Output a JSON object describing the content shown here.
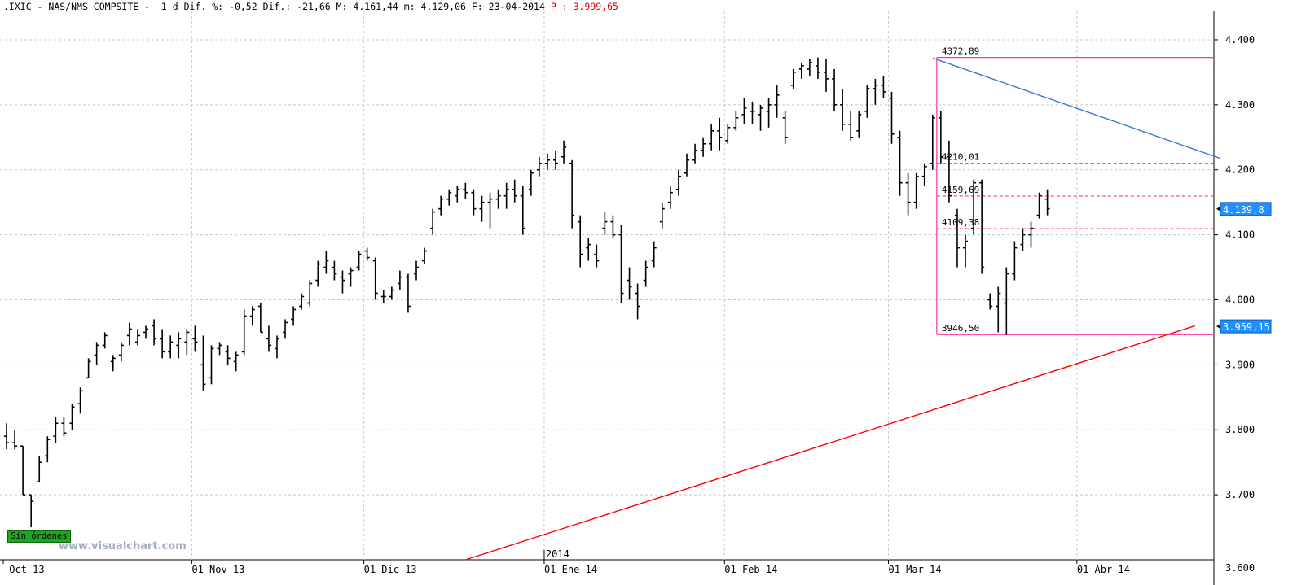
{
  "header": {
    "symbol": ".IXIC",
    "name": "NAS/NMS COMPSITE",
    "interval": "1 d",
    "dif_pct_label": "Dif. %:",
    "dif_pct": "-0,52",
    "dif_label": "Dif.:",
    "dif": "-21,66",
    "max_label": "M:",
    "max": "4.161,44",
    "min_label": "m:",
    "min": "4.129,06",
    "date_label": "F:",
    "date": "23-04-2014",
    "price_label": "P :",
    "price": "3.999,65"
  },
  "badges": {
    "sin_ordenes": "Sin órdenes",
    "watermark": "www.visualchart.com"
  },
  "colors": {
    "bars": "#000000",
    "trend_down": "#3a7bd5",
    "trend_up": "#ff0000",
    "fib": "#ff3399",
    "price_box": "#1e90ff"
  },
  "chart_data": {
    "type": "bar",
    "ylim": [
      3600,
      4430
    ],
    "yticks": [
      3700,
      3800,
      3900,
      4000,
      4100,
      4200,
      4300,
      4400
    ],
    "ytick_labels": [
      "3.700",
      "3.800",
      "3.900",
      "4.000",
      "4.100",
      "4.200",
      "4.300",
      "4.400"
    ],
    "bottom_partial_label": "3.600",
    "xtick_labels": [
      {
        "i": 0,
        "label": "-Oct-13"
      },
      {
        "i": 23,
        "label": "01-Nov-13"
      },
      {
        "i": 44,
        "label": "01-Dic-13"
      },
      {
        "i": 66,
        "label": "01-Ene-14"
      },
      {
        "i": 88,
        "label": "01-Feb-14"
      },
      {
        "i": 108,
        "label": "01-Mar-14"
      },
      {
        "i": 131,
        "label": "01-Abr-14"
      }
    ],
    "year_marker": {
      "i": 66,
      "label": "2014"
    },
    "fib_levels": [
      {
        "value": 4372.89,
        "label": "4372,89",
        "style": "solid"
      },
      {
        "value": 4210.01,
        "label": "4210,01",
        "style": "dashed"
      },
      {
        "value": 4159.69,
        "label": "4159,69",
        "style": "dashed"
      },
      {
        "value": 4109.38,
        "label": "4109,38",
        "style": "dashed"
      },
      {
        "value": 3946.5,
        "label": "3946,50",
        "style": "solid"
      }
    ],
    "fib_start_i": 114,
    "trendlines": [
      {
        "name": "resistance",
        "from": {
          "i": 113,
          "y": 4372
        },
        "to": {
          "i": 148,
          "y": 4218
        }
      },
      {
        "name": "support",
        "from": {
          "i": 56,
          "y": 3600
        },
        "to": {
          "i": 145,
          "y": 3960
        }
      }
    ],
    "price_boxes": [
      {
        "value": 4139.8,
        "label": "4.139,8"
      },
      {
        "value": 3959.15,
        "label": "3.959,15"
      }
    ],
    "ohlc": [
      [
        3790,
        3810,
        3770,
        3780
      ],
      [
        3780,
        3800,
        3770,
        3775
      ],
      [
        3775,
        3775,
        3700,
        3700
      ],
      [
        3700,
        3700,
        3650,
        3690
      ],
      [
        3720,
        3760,
        3720,
        3750
      ],
      [
        3760,
        3790,
        3750,
        3785
      ],
      [
        3790,
        3820,
        3780,
        3810
      ],
      [
        3810,
        3820,
        3790,
        3795
      ],
      [
        3810,
        3840,
        3800,
        3835
      ],
      [
        3840,
        3865,
        3825,
        3860
      ],
      [
        3880,
        3910,
        3880,
        3905
      ],
      [
        3915,
        3935,
        3900,
        3930
      ],
      [
        3930,
        3950,
        3925,
        3945
      ],
      [
        3905,
        3915,
        3890,
        3910
      ],
      [
        3915,
        3935,
        3905,
        3930
      ],
      [
        3945,
        3965,
        3930,
        3955
      ],
      [
        3935,
        3955,
        3930,
        3945
      ],
      [
        3950,
        3960,
        3940,
        3955
      ],
      [
        3960,
        3970,
        3930,
        3940
      ],
      [
        3940,
        3955,
        3910,
        3920
      ],
      [
        3920,
        3945,
        3910,
        3935
      ],
      [
        3930,
        3950,
        3910,
        3940
      ],
      [
        3935,
        3955,
        3915,
        3950
      ],
      [
        3940,
        3960,
        3920,
        3935
      ],
      [
        3900,
        3945,
        3860,
        3870
      ],
      [
        3880,
        3930,
        3870,
        3925
      ],
      [
        3925,
        3935,
        3915,
        3930
      ],
      [
        3920,
        3930,
        3900,
        3910
      ],
      [
        3905,
        3920,
        3890,
        3915
      ],
      [
        3920,
        3985,
        3915,
        3975
      ],
      [
        3975,
        3990,
        3960,
        3985
      ],
      [
        3990,
        3995,
        3950,
        3950
      ],
      [
        3940,
        3960,
        3920,
        3930
      ],
      [
        3925,
        3945,
        3910,
        3940
      ],
      [
        3950,
        3970,
        3940,
        3965
      ],
      [
        3970,
        3990,
        3960,
        3985
      ],
      [
        3990,
        4010,
        3985,
        4005
      ],
      [
        3995,
        4030,
        3990,
        4025
      ],
      [
        4030,
        4060,
        4020,
        4055
      ],
      [
        4050,
        4075,
        4040,
        4060
      ],
      [
        4050,
        4060,
        4030,
        4040
      ],
      [
        4035,
        4045,
        4010,
        4030
      ],
      [
        4040,
        4050,
        4020,
        4045
      ],
      [
        4050,
        4075,
        4045,
        4070
      ],
      [
        4075,
        4080,
        4060,
        4065
      ],
      [
        4060,
        4065,
        4000,
        4010
      ],
      [
        4005,
        4015,
        3995,
        4005
      ],
      [
        4005,
        4020,
        4000,
        4015
      ],
      [
        4025,
        4045,
        4015,
        4035
      ],
      [
        4035,
        4040,
        3980,
        3990
      ],
      [
        4040,
        4060,
        4030,
        4050
      ],
      [
        4060,
        4080,
        4055,
        4075
      ],
      [
        4110,
        4140,
        4100,
        4135
      ],
      [
        4140,
        4160,
        4130,
        4155
      ],
      [
        4155,
        4170,
        4145,
        4165
      ],
      [
        4160,
        4175,
        4150,
        4170
      ],
      [
        4170,
        4180,
        4155,
        4165
      ],
      [
        4165,
        4170,
        4130,
        4140
      ],
      [
        4140,
        4160,
        4120,
        4150
      ],
      [
        4150,
        4165,
        4110,
        4155
      ],
      [
        4155,
        4170,
        4140,
        4160
      ],
      [
        4160,
        4180,
        4140,
        4170
      ],
      [
        4170,
        4185,
        4150,
        4160
      ],
      [
        4160,
        4175,
        4100,
        4110
      ],
      [
        4170,
        4200,
        4160,
        4195
      ],
      [
        4200,
        4220,
        4190,
        4210
      ],
      [
        4210,
        4225,
        4200,
        4215
      ],
      [
        4215,
        4230,
        4200,
        4210
      ],
      [
        4220,
        4245,
        4210,
        4235
      ],
      [
        4210,
        4215,
        4110,
        4130
      ],
      [
        4120,
        4130,
        4050,
        4070
      ],
      [
        4080,
        4095,
        4060,
        4085
      ],
      [
        4070,
        4085,
        4050,
        4060
      ],
      [
        4110,
        4135,
        4100,
        4120
      ],
      [
        4120,
        4130,
        4095,
        4100
      ],
      [
        4100,
        4115,
        3995,
        4010
      ],
      [
        4030,
        4050,
        4000,
        4020
      ],
      [
        4010,
        4025,
        3970,
        3990
      ],
      [
        4030,
        4060,
        4020,
        4050
      ],
      [
        4060,
        4090,
        4050,
        4080
      ],
      [
        4120,
        4150,
        4110,
        4140
      ],
      [
        4150,
        4175,
        4140,
        4165
      ],
      [
        4170,
        4200,
        4160,
        4190
      ],
      [
        4195,
        4225,
        4190,
        4215
      ],
      [
        4215,
        4240,
        4210,
        4230
      ],
      [
        4230,
        4250,
        4220,
        4240
      ],
      [
        4240,
        4270,
        4230,
        4260
      ],
      [
        4260,
        4280,
        4230,
        4250
      ],
      [
        4245,
        4270,
        4240,
        4265
      ],
      [
        4265,
        4290,
        4260,
        4280
      ],
      [
        4285,
        4310,
        4270,
        4295
      ],
      [
        4290,
        4305,
        4270,
        4290
      ],
      [
        4285,
        4300,
        4260,
        4295
      ],
      [
        4290,
        4310,
        4265,
        4300
      ],
      [
        4300,
        4330,
        4280,
        4315
      ],
      [
        4280,
        4290,
        4240,
        4250
      ],
      [
        4330,
        4355,
        4325,
        4350
      ],
      [
        4355,
        4365,
        4340,
        4360
      ],
      [
        4355,
        4370,
        4345,
        4365
      ],
      [
        4360,
        4373,
        4340,
        4350
      ],
      [
        4350,
        4370,
        4320,
        4340
      ],
      [
        4340,
        4355,
        4290,
        4300
      ],
      [
        4300,
        4325,
        4260,
        4270
      ],
      [
        4270,
        4290,
        4245,
        4250
      ],
      [
        4260,
        4290,
        4250,
        4285
      ],
      [
        4290,
        4330,
        4280,
        4325
      ],
      [
        4325,
        4340,
        4300,
        4330
      ],
      [
        4330,
        4345,
        4310,
        4320
      ],
      [
        4310,
        4320,
        4240,
        4255
      ],
      [
        4250,
        4260,
        4160,
        4180
      ],
      [
        4180,
        4195,
        4130,
        4150
      ],
      [
        4150,
        4195,
        4140,
        4190
      ],
      [
        4190,
        4210,
        4175,
        4205
      ],
      [
        4210,
        4285,
        4200,
        4280
      ],
      [
        4280,
        4290,
        4210,
        4220
      ],
      [
        4220,
        4245,
        4150,
        4160
      ],
      [
        4130,
        4140,
        4050,
        4080
      ],
      [
        4080,
        4100,
        4050,
        4090
      ],
      [
        4110,
        4185,
        4100,
        4180
      ],
      [
        4180,
        4185,
        4040,
        4050
      ],
      [
        4000,
        4010,
        3985,
        3990
      ],
      [
        3990,
        4020,
        3950,
        4010
      ],
      [
        3995,
        4050,
        3946,
        4040
      ],
      [
        4040,
        4090,
        4030,
        4080
      ],
      [
        4085,
        4110,
        4075,
        4100
      ],
      [
        4100,
        4120,
        4080,
        4110
      ],
      [
        4130,
        4165,
        4125,
        4160
      ],
      [
        4155,
        4170,
        4130,
        4140
      ]
    ]
  }
}
